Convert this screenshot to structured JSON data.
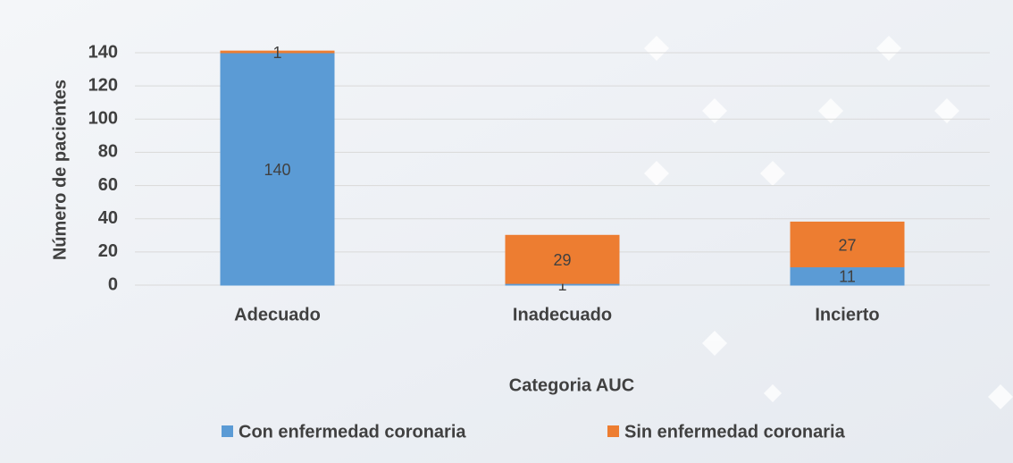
{
  "chart_data": {
    "type": "stacked_bar",
    "categories": [
      "Adecuado",
      "Inadecuado",
      "Incierto"
    ],
    "series": [
      {
        "name": "Con enfermedad coronaria",
        "color": "#5b9bd5",
        "values": [
          140,
          1,
          11
        ]
      },
      {
        "name": "Sin enfermedad coronaria",
        "color": "#ed7d31",
        "values": [
          1,
          29,
          27
        ]
      }
    ],
    "x_label": "Categoria AUC",
    "y_label": "Número de pacientes",
    "ylim": [
      0,
      140
    ],
    "yticks": [
      0,
      20,
      40,
      60,
      80,
      100,
      120,
      140
    ],
    "grid": true,
    "legend": "bottom"
  }
}
